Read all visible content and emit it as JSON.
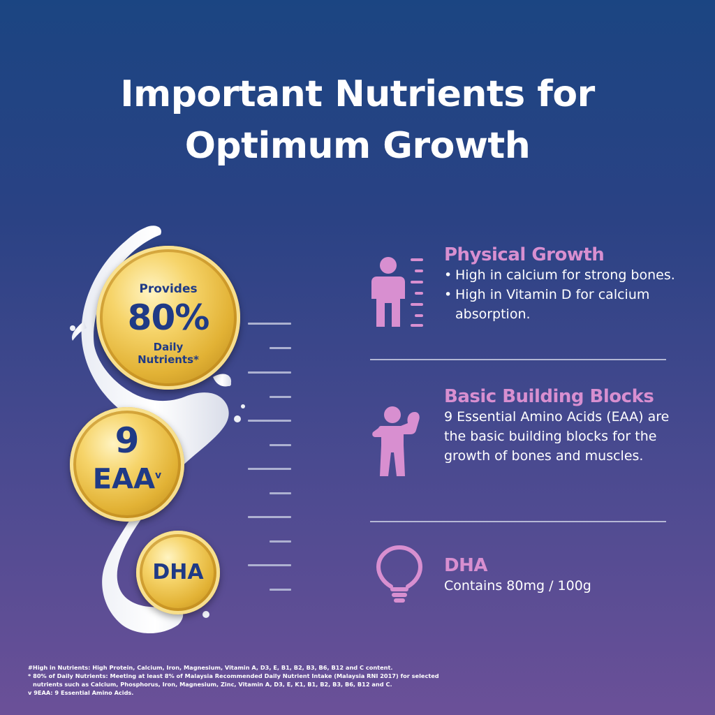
{
  "title": {
    "line1": "Important Nutrients for",
    "line2": "Optimum Growth"
  },
  "medallions": {
    "daily": {
      "top": "Provides",
      "value": "80%",
      "bottom1": "Daily",
      "bottom2": "Nutrients*"
    },
    "eaa": {
      "value": "9",
      "label": "EAA",
      "mark": "v"
    },
    "dha": {
      "label": "DHA"
    }
  },
  "features": {
    "physical": {
      "title": "Physical Growth",
      "bullets": [
        "High in calcium for strong bones.",
        "High in Vitamin D for calcium absorption."
      ]
    },
    "building": {
      "title": "Basic Building Blocks",
      "body": "9 Essential Amino Acids (EAA) are the basic building blocks for the growth of bones and muscles."
    },
    "dha": {
      "title": "DHA",
      "body": "Contains 80mg / 100g"
    }
  },
  "footnotes": {
    "f1": "#High in Nutrients: High Protein, Calcium, Iron, Magnesium, Vitamin A, D3, E, B1, B2, B3, B6, B12 and C content.",
    "f2a": "* 80% of Daily Nutrients: Meeting at least 8% of Malaysia Recommended Daily Nutrient Intake (Malaysia RNI 2017) for selected",
    "f2b": "nutrients such as Calcium, Phosphorus, Iron, Magnesium, Zinc, Vitamin A, D3, E, K1, B1, B2, B3, B6, B12 and C.",
    "f3": "v 9EAA: 9 Essential Amino Acids."
  },
  "colors": {
    "accent": "#d88fd0",
    "coin_text": "#1f3a86",
    "background_top": "#1b4582",
    "background_bottom": "#6b5098"
  },
  "icons": [
    "person-height-icon",
    "person-flexing-icon",
    "lightbulb-icon",
    "milk-splash"
  ]
}
